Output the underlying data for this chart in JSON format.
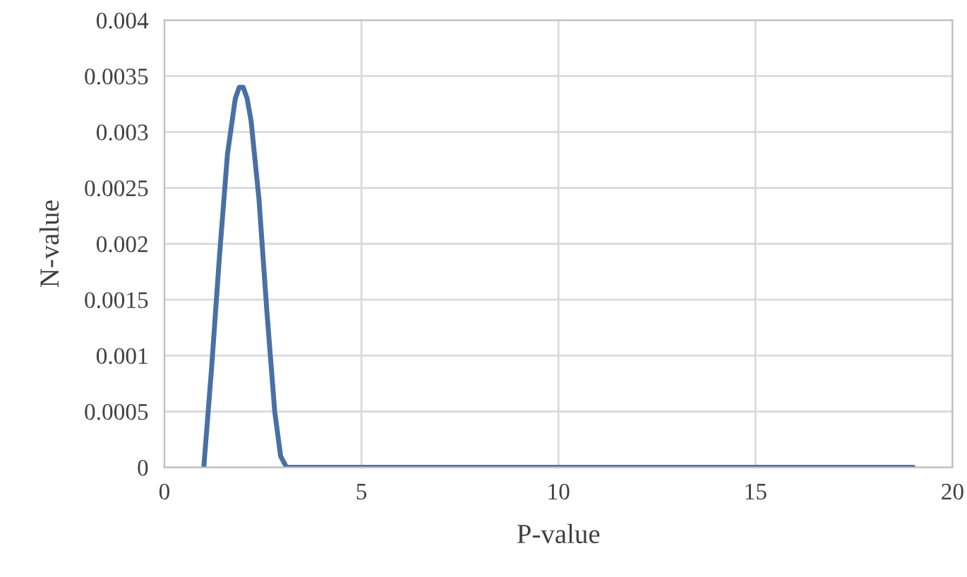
{
  "chart_data": {
    "type": "line",
    "xlabel": "P-value",
    "ylabel": "N-value",
    "x": [
      1,
      1.2,
      1.4,
      1.6,
      1.8,
      1.9,
      2,
      2.1,
      2.2,
      2.4,
      2.6,
      2.8,
      2.95,
      3.1,
      3.5,
      4,
      6,
      10,
      15,
      19
    ],
    "series": [
      {
        "color": "#4a6fa5",
        "values": [
          0,
          0.0009,
          0.0019,
          0.0028,
          0.0033,
          0.0034,
          0.0034,
          0.0033,
          0.0031,
          0.0024,
          0.0014,
          0.0005,
          0.0001,
          0,
          0,
          0,
          0,
          0,
          0,
          0
        ]
      }
    ],
    "xlim": [
      0,
      20
    ],
    "xticks": [
      0,
      5,
      10,
      15,
      20
    ],
    "ylim": [
      0,
      0.004
    ],
    "yticks": [
      0,
      0.0005,
      0.001,
      0.0015,
      0.002,
      0.0025,
      0.003,
      0.0035,
      0.004
    ],
    "grid": true,
    "line_style": "solid",
    "marker": "none"
  }
}
